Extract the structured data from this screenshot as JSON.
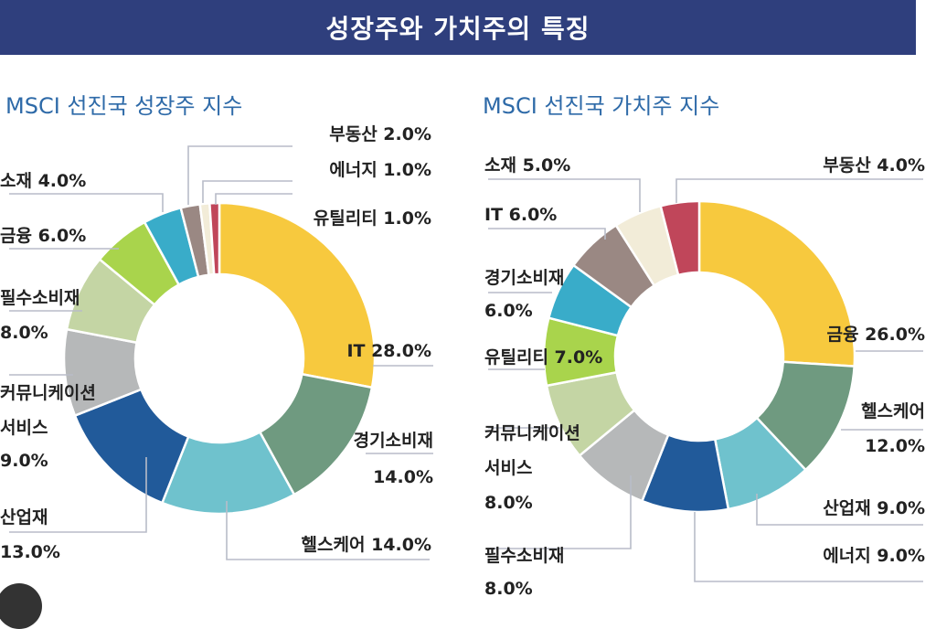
{
  "title": "성장주와 가치주의 특징",
  "colors": {
    "banner": "#2f3f7d",
    "subtitle": "#2e6aa8",
    "palette": {
      "IT_left": "#f7c93e",
      "금융_right": "#f7c93e",
      "green_gray": "#6f9a80",
      "teal": "#6fc2cd",
      "navy": "#215a9a",
      "gray": "#b6b8b9",
      "sage": "#c4d5a4",
      "lime": "#a9d44c",
      "cyan": "#39acc9",
      "taupe": "#9a8883",
      "cream": "#f2ecd8",
      "crimson": "#c0465a"
    }
  },
  "chart_data": [
    {
      "type": "pie",
      "donut": true,
      "title": "MSCI 선진국 성장주 지수",
      "slices": [
        {
          "name": "IT",
          "value": 28.0,
          "label": "IT 28.0%"
        },
        {
          "name": "경기소비재",
          "value": 14.0,
          "label": "경기소비재 14.0%"
        },
        {
          "name": "헬스케어",
          "value": 14.0,
          "label": "헬스케어 14.0%"
        },
        {
          "name": "산업재",
          "value": 13.0,
          "label": "산업재 13.0%"
        },
        {
          "name": "커뮤니케이션서비스",
          "value": 9.0,
          "label": "커뮤니케이션 서비스 9.0%"
        },
        {
          "name": "필수소비재",
          "value": 8.0,
          "label": "필수소비재 8.0%"
        },
        {
          "name": "금융",
          "value": 6.0,
          "label": "금융 6.0%"
        },
        {
          "name": "소재",
          "value": 4.0,
          "label": "소재 4.0%"
        },
        {
          "name": "부동산",
          "value": 2.0,
          "label": "부동산 2.0%"
        },
        {
          "name": "에너지",
          "value": 1.0,
          "label": "에너지 1.0%"
        },
        {
          "name": "유틸리티",
          "value": 1.0,
          "label": "유틸리티 1.0%"
        }
      ]
    },
    {
      "type": "pie",
      "donut": true,
      "title": "MSCI 선진국 가치주 지수",
      "slices": [
        {
          "name": "금융",
          "value": 26.0,
          "label": "금융 26.0%"
        },
        {
          "name": "헬스케어",
          "value": 12.0,
          "label": "헬스케어 12.0%"
        },
        {
          "name": "산업재",
          "value": 9.0,
          "label": "산업재 9.0%"
        },
        {
          "name": "에너지",
          "value": 9.0,
          "label": "에너지 9.0%"
        },
        {
          "name": "필수소비재",
          "value": 8.0,
          "label": "필수소비재 8.0%"
        },
        {
          "name": "커뮤니케이션서비스",
          "value": 8.0,
          "label": "커뮤니케이션 서비스 8.0%"
        },
        {
          "name": "유틸리티",
          "value": 7.0,
          "label": "유틸리티 7.0%"
        },
        {
          "name": "경기소비재",
          "value": 6.0,
          "label": "경기소비재 6.0%"
        },
        {
          "name": "IT",
          "value": 6.0,
          "label": "IT 6.0%"
        },
        {
          "name": "소재",
          "value": 5.0,
          "label": "소재 5.0%"
        },
        {
          "name": "부동산",
          "value": 4.0,
          "label": "부동산 4.0%"
        }
      ]
    }
  ],
  "labels": {
    "left": {
      "it": "IT 28.0%",
      "consdisc_1": "경기소비재",
      "consdisc_2": "14.0%",
      "health": "헬스케어 14.0%",
      "indus_1": "산업재",
      "indus_2": "13.0%",
      "comm_1": "커뮤니케이션",
      "comm_2": "서비스",
      "comm_3": "9.0%",
      "staples_1": "필수소비재",
      "staples_2": "8.0%",
      "fin": "금융 6.0%",
      "mat": "소재 4.0%",
      "re": "부동산 2.0%",
      "energy": "에너지 1.0%",
      "util": "유틸리티 1.0%"
    },
    "right": {
      "fin": "금융 26.0%",
      "health_1": "헬스케어",
      "health_2": "12.0%",
      "indus": "산업재 9.0%",
      "energy": "에너지 9.0%",
      "staples_1": "필수소비재",
      "staples_2": "8.0%",
      "comm_1": "커뮤니케이션",
      "comm_2": "서비스",
      "comm_3": "8.0%",
      "util": "유틸리티 7.0%",
      "consdisc_1": "경기소비재",
      "consdisc_2": "6.0%",
      "it": "IT 6.0%",
      "mat": "소재 5.0%",
      "re": "부동산 4.0%"
    }
  }
}
